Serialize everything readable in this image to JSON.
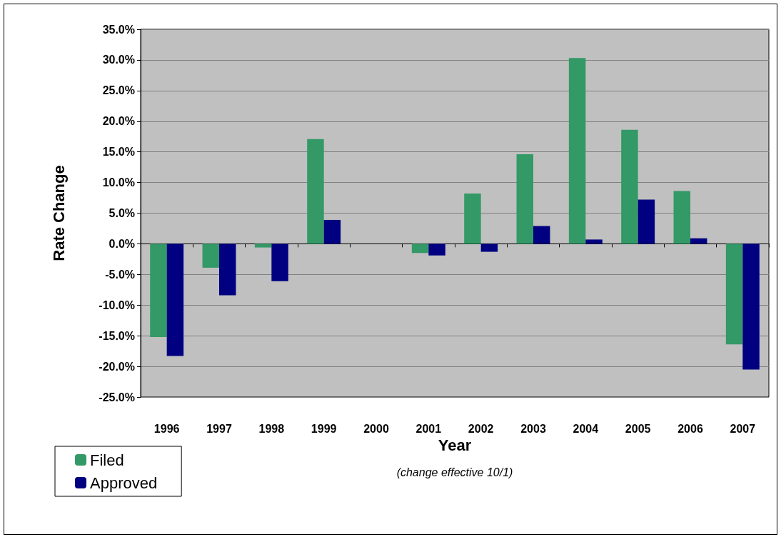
{
  "chart_data": {
    "type": "bar",
    "xlabel": "Year",
    "ylabel": "Rate Change",
    "annotations": [
      "(change effective 10/1)"
    ],
    "categories": [
      "1996",
      "1997",
      "1998",
      "1999",
      "2000",
      "2001",
      "2002",
      "2003",
      "2004",
      "2005",
      "2006",
      "2007"
    ],
    "series": [
      {
        "name": "Filed",
        "color": "#339966",
        "values": [
          -15.2,
          -3.9,
          -0.6,
          17.1,
          null,
          -1.5,
          8.2,
          14.6,
          30.3,
          18.6,
          8.6,
          -16.4
        ]
      },
      {
        "name": "Approved",
        "color": "#000080",
        "values": [
          -18.3,
          -8.4,
          -6.1,
          3.9,
          null,
          -1.9,
          -1.3,
          2.9,
          0.7,
          7.2,
          0.9,
          -20.5
        ]
      }
    ],
    "ylim": [
      -25,
      35
    ],
    "yticks": [
      {
        "value": -25,
        "label": "-25.0%"
      },
      {
        "value": -20,
        "label": "-20.0%"
      },
      {
        "value": -15,
        "label": "-15.0%"
      },
      {
        "value": -10,
        "label": "-10.0%"
      },
      {
        "value": -5,
        "label": "-5.0%"
      },
      {
        "value": 0,
        "label": "0.0%"
      },
      {
        "value": 5,
        "label": "5.0%"
      },
      {
        "value": 10,
        "label": "10.0%"
      },
      {
        "value": 15,
        "label": "15.0%"
      },
      {
        "value": 20,
        "label": "20.0%"
      },
      {
        "value": 25,
        "label": "25.0%"
      },
      {
        "value": 30,
        "label": "30.0%"
      },
      {
        "value": 35,
        "label": "35.0%"
      }
    ],
    "grid": "y",
    "legend": "bottom left"
  }
}
